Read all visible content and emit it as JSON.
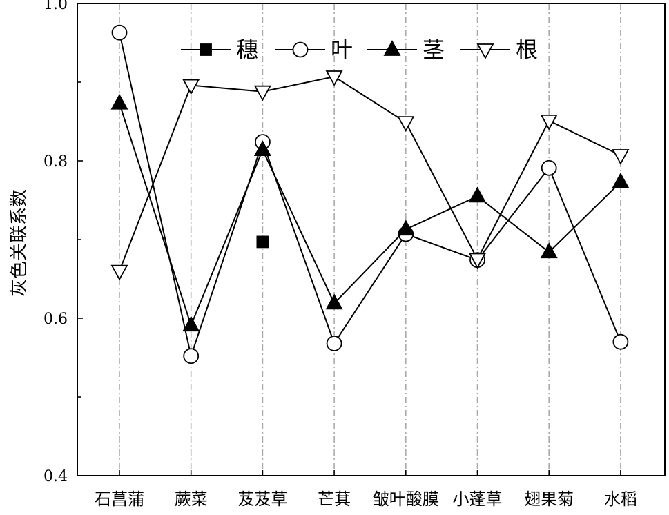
{
  "chart_data": {
    "type": "line",
    "ylabel": "灰色关联系数",
    "xlabel": "",
    "categories": [
      "石菖蒲",
      "蕨菜",
      "芨芨草",
      "芒萁",
      "皱叶酸膜",
      "小蓬草",
      "翅果菊",
      "水稻"
    ],
    "ylim": [
      0.4,
      1.0
    ],
    "yticks": [
      "0.4",
      "0.6",
      "0.8",
      "1.0"
    ],
    "grid": "vertical dash-dot gridlines at each category",
    "legend_position": "top",
    "series": [
      {
        "name": "穗",
        "marker": "filled-square",
        "line": false,
        "values": [
          null,
          null,
          0.697,
          null,
          null,
          null,
          null,
          null
        ]
      },
      {
        "name": "叶",
        "marker": "open-circle",
        "line": true,
        "values": [
          0.963,
          0.552,
          0.824,
          0.568,
          0.707,
          0.674,
          0.791,
          0.57
        ]
      },
      {
        "name": "茎",
        "marker": "filled-triangle-up",
        "line": true,
        "values": [
          0.873,
          0.591,
          0.814,
          0.619,
          0.713,
          0.755,
          0.684,
          0.773
        ]
      },
      {
        "name": "根",
        "marker": "open-triangle-down",
        "line": true,
        "values": [
          0.66,
          0.896,
          0.888,
          0.907,
          0.849,
          0.675,
          0.851,
          0.807
        ]
      }
    ]
  }
}
